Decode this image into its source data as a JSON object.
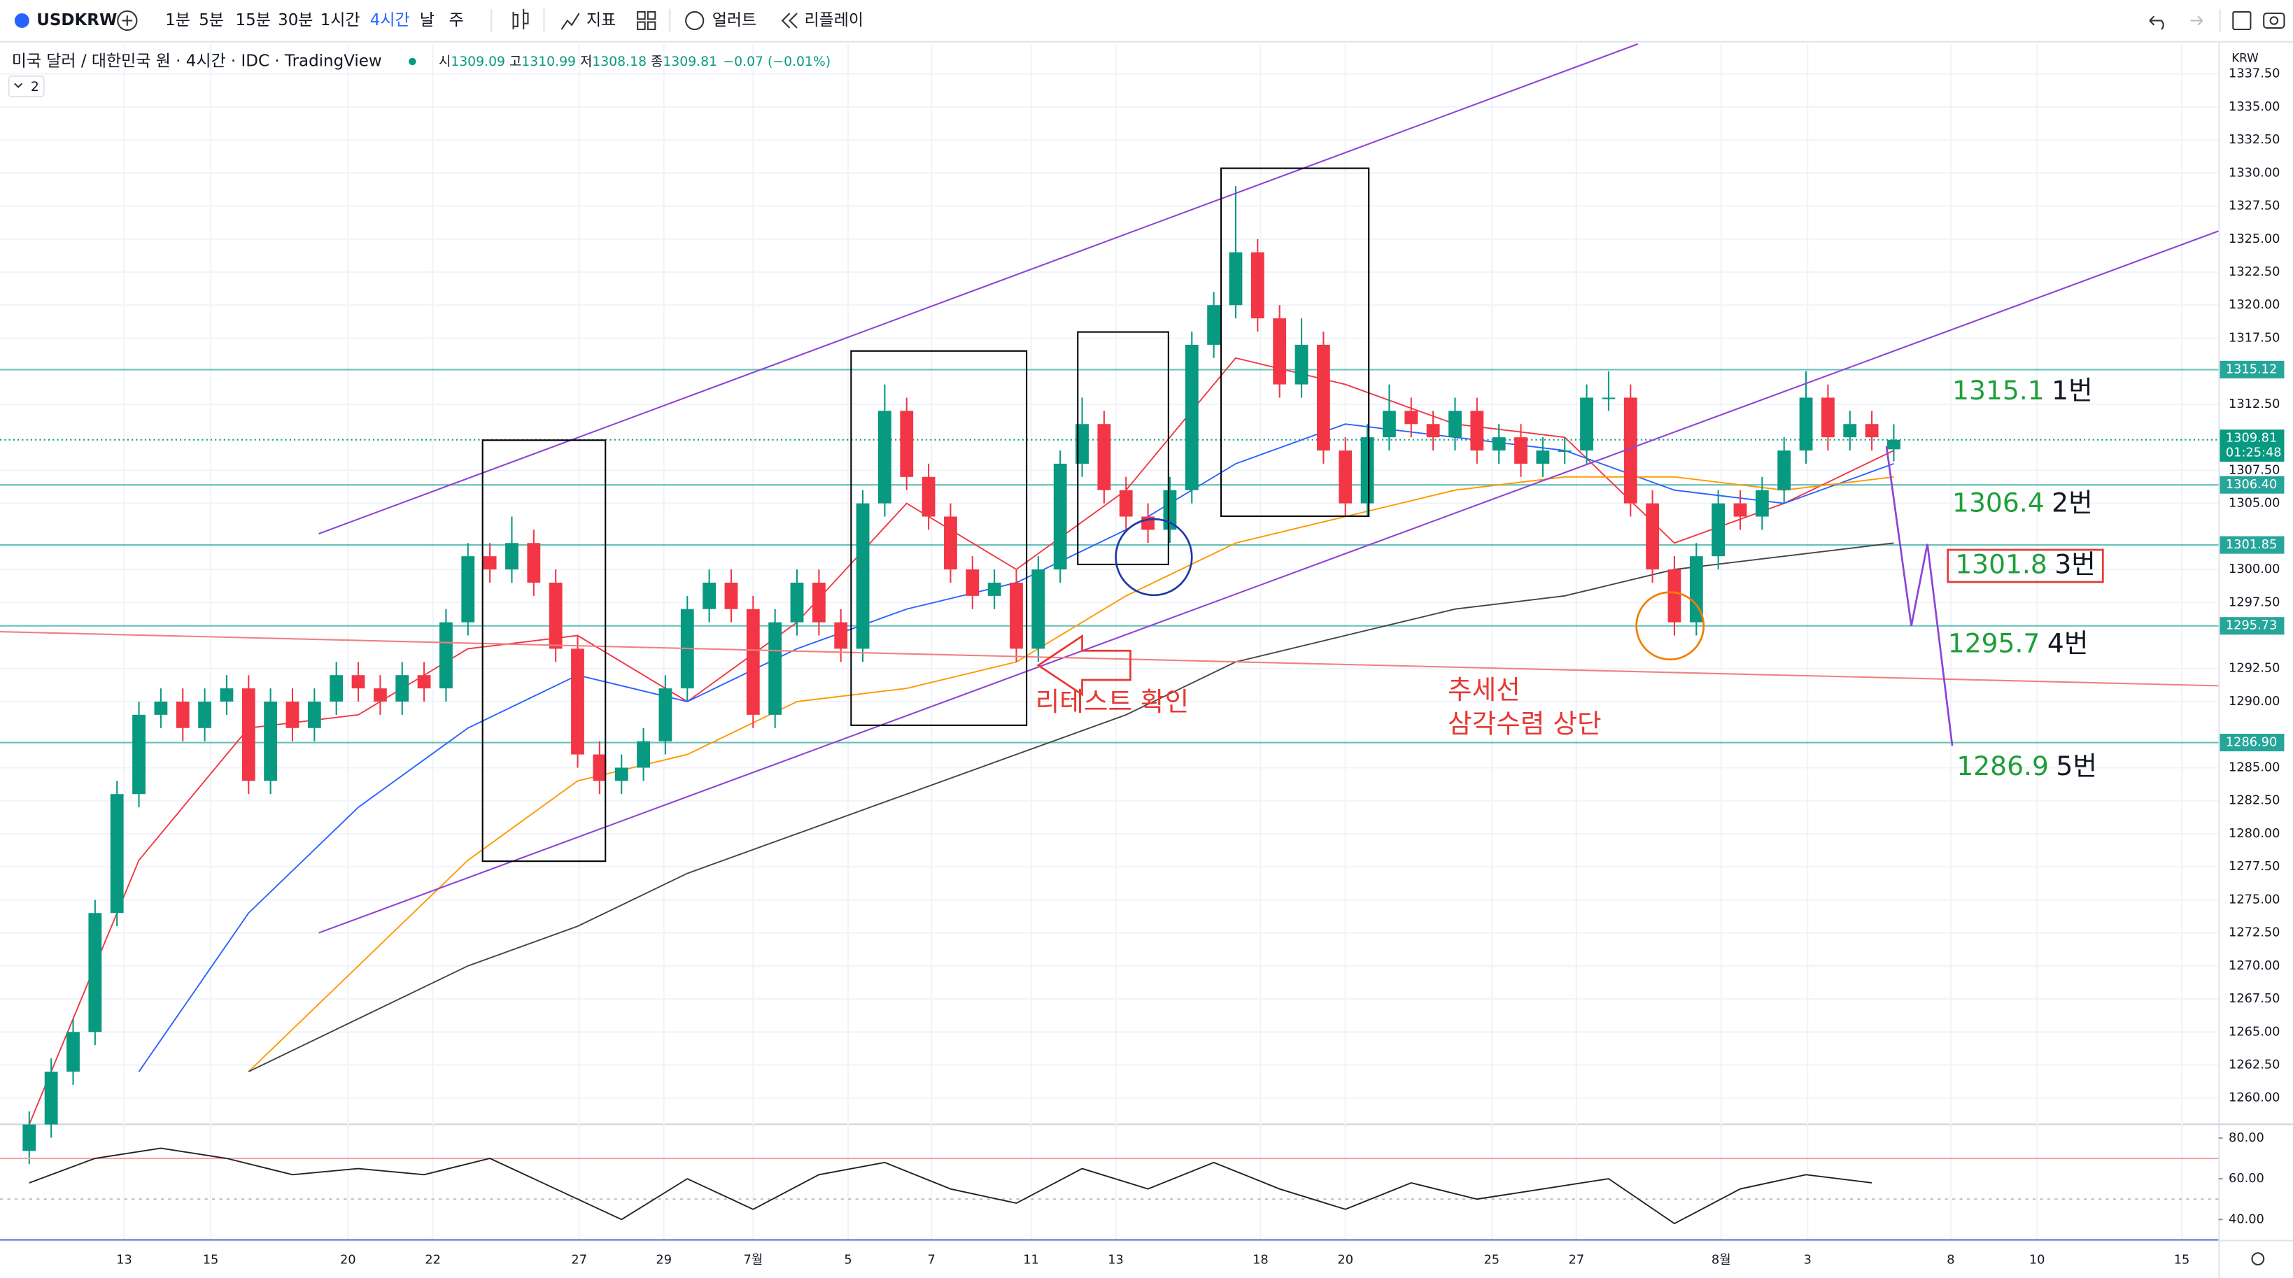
{
  "toolbar": {
    "symbol": "USDKRW",
    "intervals": [
      "1분",
      "5분",
      "15분",
      "30분",
      "1시간",
      "4시간",
      "날",
      "주"
    ],
    "indicators": "지표",
    "alerts": "얼러트",
    "replay": "리플레이"
  },
  "chart_data": {
    "type": "candlestick",
    "title": "미국 달러 / 대한민국 원 · 4시간 · IDC · TradingView",
    "ohlc_prefixes": [
      "시",
      "고",
      "저",
      "종"
    ],
    "change": "−0.07 (−0.01%)",
    "indicator_count": "2",
    "currency": "KRW",
    "countdown": "01:25:48",
    "up_color": "#089981",
    "down_color": "#f23645",
    "candles": [
      [
        1256,
        1259,
        1255,
        1258
      ],
      [
        1258,
        1263,
        1257,
        1262
      ],
      [
        1262,
        1266,
        1261,
        1265
      ],
      [
        1265,
        1275,
        1264,
        1274
      ],
      [
        1274,
        1284,
        1273,
        1283
      ],
      [
        1283,
        1290,
        1282,
        1289
      ],
      [
        1289,
        1291,
        1288,
        1290
      ],
      [
        1290,
        1291,
        1287,
        1288
      ],
      [
        1288,
        1291,
        1287,
        1290
      ],
      [
        1290,
        1292,
        1289,
        1291
      ],
      [
        1291,
        1292,
        1283,
        1284
      ],
      [
        1284,
        1291,
        1283,
        1290
      ],
      [
        1290,
        1291,
        1287,
        1288
      ],
      [
        1288,
        1291,
        1287,
        1290
      ],
      [
        1290,
        1293,
        1289,
        1292
      ],
      [
        1292,
        1293,
        1290,
        1291
      ],
      [
        1291,
        1292,
        1289,
        1290
      ],
      [
        1290,
        1293,
        1289,
        1292
      ],
      [
        1292,
        1293,
        1290,
        1291
      ],
      [
        1291,
        1297,
        1290,
        1296
      ],
      [
        1296,
        1302,
        1295,
        1301
      ],
      [
        1301,
        1302,
        1299,
        1300
      ],
      [
        1300,
        1304,
        1299,
        1302
      ],
      [
        1302,
        1303,
        1298,
        1299
      ],
      [
        1299,
        1300,
        1293,
        1294
      ],
      [
        1294,
        1295,
        1285,
        1286
      ],
      [
        1286,
        1287,
        1283,
        1284
      ],
      [
        1284,
        1286,
        1283,
        1285
      ],
      [
        1285,
        1288,
        1284,
        1287
      ],
      [
        1287,
        1292,
        1286,
        1291
      ],
      [
        1291,
        1298,
        1290,
        1297
      ],
      [
        1297,
        1300,
        1296,
        1299
      ],
      [
        1299,
        1300,
        1296,
        1297
      ],
      [
        1297,
        1298,
        1288,
        1289
      ],
      [
        1289,
        1297,
        1288,
        1296
      ],
      [
        1296,
        1300,
        1295,
        1299
      ],
      [
        1299,
        1300,
        1295,
        1296
      ],
      [
        1296,
        1297,
        1293,
        1294
      ],
      [
        1294,
        1306,
        1293,
        1305
      ],
      [
        1305,
        1314,
        1304,
        1312
      ],
      [
        1312,
        1313,
        1306,
        1307
      ],
      [
        1307,
        1308,
        1303,
        1304
      ],
      [
        1304,
        1305,
        1299,
        1300
      ],
      [
        1300,
        1301,
        1297,
        1298
      ],
      [
        1298,
        1300,
        1297,
        1299
      ],
      [
        1299,
        1300,
        1293,
        1294
      ],
      [
        1294,
        1301,
        1293,
        1300
      ],
      [
        1300,
        1309,
        1299,
        1308
      ],
      [
        1308,
        1313,
        1307,
        1311
      ],
      [
        1311,
        1312,
        1305,
        1306
      ],
      [
        1306,
        1307,
        1303,
        1304
      ],
      [
        1304,
        1305,
        1302,
        1303
      ],
      [
        1303,
        1307,
        1302,
        1306
      ],
      [
        1306,
        1318,
        1305,
        1317
      ],
      [
        1317,
        1321,
        1316,
        1320
      ],
      [
        1320,
        1329,
        1319,
        1324
      ],
      [
        1324,
        1325,
        1318,
        1319
      ],
      [
        1319,
        1320,
        1313,
        1314
      ],
      [
        1314,
        1319,
        1313,
        1317
      ],
      [
        1317,
        1318,
        1308,
        1309
      ],
      [
        1309,
        1310,
        1304,
        1305
      ],
      [
        1305,
        1311,
        1304,
        1310
      ],
      [
        1310,
        1314,
        1309,
        1312
      ],
      [
        1312,
        1313,
        1310,
        1311
      ],
      [
        1311,
        1312,
        1309,
        1310
      ],
      [
        1310,
        1313,
        1309,
        1312
      ],
      [
        1312,
        1313,
        1308,
        1309
      ],
      [
        1309,
        1311,
        1308,
        1310
      ],
      [
        1310,
        1311,
        1307,
        1308
      ],
      [
        1308,
        1310,
        1307,
        1309
      ],
      [
        1309,
        1310,
        1308,
        1309
      ],
      [
        1309,
        1314,
        1308,
        1313
      ],
      [
        1313,
        1315,
        1312,
        1313
      ],
      [
        1313,
        1314,
        1304,
        1305
      ],
      [
        1305,
        1306,
        1299,
        1300
      ],
      [
        1300,
        1301,
        1295,
        1296
      ],
      [
        1296,
        1302,
        1295,
        1301
      ],
      [
        1301,
        1306,
        1300,
        1305
      ],
      [
        1305,
        1306,
        1303,
        1304
      ],
      [
        1304,
        1307,
        1303,
        1306
      ],
      [
        1306,
        1310,
        1305,
        1309
      ],
      [
        1309,
        1315,
        1308,
        1313
      ],
      [
        1313,
        1314,
        1309,
        1310
      ],
      [
        1310,
        1312,
        1309,
        1311
      ],
      [
        1311,
        1312,
        1309,
        1310
      ],
      [
        1309.09,
        1310.99,
        1308.18,
        1309.81
      ]
    ],
    "series": [
      {
        "color": "#f23645",
        "x": [
          0,
          5,
          10,
          15,
          20,
          25,
          30,
          35,
          40,
          45,
          50,
          55,
          60,
          65,
          70,
          75,
          80,
          85
        ],
        "values": [
          1258,
          1278,
          1288,
          1289,
          1294,
          1295,
          1290,
          1296,
          1305,
          1300,
          1306,
          1316,
          1314,
          1311,
          1310,
          1302,
          1305,
          1309
        ]
      },
      {
        "color": "#2962ff",
        "x": [
          0,
          5,
          10,
          15,
          20,
          25,
          30,
          35,
          40,
          45,
          50,
          55,
          60,
          65,
          70,
          75,
          80,
          85
        ],
        "values": [
          null,
          1262,
          1274,
          1282,
          1288,
          1292,
          1290,
          1294,
          1297,
          1299,
          1303,
          1308,
          1311,
          1310,
          1309,
          1306,
          1305,
          1308
        ]
      },
      {
        "color": "#ff9800",
        "x": [
          0,
          5,
          10,
          15,
          20,
          25,
          30,
          35,
          40,
          45,
          50,
          55,
          60,
          65,
          70,
          75,
          80,
          85
        ],
        "values": [
          null,
          null,
          1262,
          1270,
          1278,
          1284,
          1286,
          1290,
          1291,
          1293,
          1298,
          1302,
          1304,
          1306,
          1307,
          1307,
          1306,
          1307
        ]
      },
      {
        "color": "#444444",
        "x": [
          10,
          15,
          20,
          25,
          30,
          35,
          40,
          45,
          50,
          55,
          60,
          65,
          70,
          75,
          80,
          85
        ],
        "values": [
          1262,
          1266,
          1270,
          1273,
          1277,
          1280,
          1283,
          1286,
          1289,
          1293,
          1295,
          1297,
          1298,
          1300,
          1301,
          1302
        ]
      }
    ],
    "levels": [
      1315.12,
      {
        "value": 1306.4,
        "label": "1306.40"
      },
      1301.85,
      1295.73,
      {
        "value": 1286.9,
        "label": "1286.90"
      }
    ],
    "level_color": "#26a69a",
    "xlim": [
      -1.3333,
      99.8
    ],
    "xticks": [
      {
        "value": 4.33,
        "label": "13"
      },
      {
        "value": 8.27,
        "label": "15"
      },
      {
        "value": 14.53,
        "label": "20"
      },
      {
        "value": 18.4,
        "label": "22"
      },
      {
        "value": 25.07,
        "label": "27"
      },
      {
        "value": 28.93,
        "label": "29"
      },
      {
        "value": 33,
        "label": "7월"
      },
      {
        "value": 37.33,
        "label": "5"
      },
      {
        "value": 41.13,
        "label": "7"
      },
      {
        "value": 45.67,
        "label": "11"
      },
      {
        "value": 49.53,
        "label": "13"
      },
      {
        "value": 56.13,
        "label": "18"
      },
      {
        "value": 60,
        "label": "20"
      },
      {
        "value": 66.67,
        "label": "25"
      },
      {
        "value": 70.53,
        "label": "27"
      },
      {
        "value": 77.13,
        "label": "8월"
      },
      {
        "value": 81.07,
        "label": "3"
      },
      {
        "value": 87.6,
        "label": "8"
      },
      {
        "value": 91.53,
        "label": "10"
      },
      {
        "value": 98.13,
        "label": "15"
      }
    ],
    "ylim": [
      1258.12,
      1339.76
    ],
    "yticks": [
      {
        "value": 1337.5,
        "label": "1337.50"
      },
      {
        "value": 1335,
        "label": "1335.00"
      },
      {
        "value": 1332.5,
        "label": "1332.50"
      },
      {
        "value": 1330,
        "label": "1330.00"
      },
      {
        "value": 1327.5,
        "label": "1327.50"
      },
      {
        "value": 1325,
        "label": "1325.00"
      },
      {
        "value": 1322.5,
        "label": "1322.50"
      },
      {
        "value": 1320,
        "label": "1320.00"
      },
      {
        "value": 1317.5,
        "label": "1317.50"
      },
      {
        "value": 1312.5,
        "label": "1312.50"
      },
      {
        "value": 1307.5,
        "label": "1307.50"
      },
      {
        "value": 1305,
        "label": "1305.00"
      },
      {
        "value": 1300,
        "label": "1300.00"
      },
      {
        "value": 1297.5,
        "label": "1297.50"
      },
      {
        "value": 1292.5,
        "label": "1292.50"
      },
      {
        "value": 1290,
        "label": "1290.00"
      },
      {
        "value": 1285,
        "label": "1285.00"
      },
      {
        "value": 1282.5,
        "label": "1282.50"
      },
      {
        "value": 1280,
        "label": "1280.00"
      },
      {
        "value": 1277.5,
        "label": "1277.50"
      },
      {
        "value": 1275,
        "label": "1275.00"
      },
      {
        "value": 1272.5,
        "label": "1272.50"
      },
      {
        "value": 1270,
        "label": "1270.00"
      },
      {
        "value": 1267.5,
        "label": "1267.50"
      },
      {
        "value": 1265,
        "label": "1265.00"
      },
      {
        "value": 1262.5,
        "label": "1262.50"
      },
      {
        "value": 1260,
        "label": "1260.00"
      }
    ],
    "annotations": {
      "levels": [
        {
          "price": "1315.1",
          "name": "1번"
        },
        {
          "price": "1306.4",
          "name": "2번"
        },
        {
          "price": "1301.8",
          "name": "3번"
        },
        {
          "price": "1295.7",
          "name": "4번"
        },
        {
          "price": "1286.9",
          "name": "5번"
        }
      ],
      "retest": "리테스트 확인",
      "trendline": [
        "추세선",
        "삼각수렴 상단"
      ]
    },
    "rsi": {
      "color": "#222222",
      "ylim": [
        30,
        86
      ],
      "yticks": [
        {
          "value": 80,
          "label": "80.00"
        },
        {
          "value": 60,
          "label": "60.00"
        },
        {
          "value": 40,
          "label": "40.00"
        }
      ],
      "levels": [
        70,
        50,
        30
      ],
      "level_colors": [
        "#f5a3a3",
        "#bbbbbb",
        "#5b7fd6"
      ],
      "x": [
        0,
        3,
        6,
        9,
        12,
        15,
        18,
        21,
        24,
        27,
        30,
        33,
        36,
        39,
        42,
        45,
        48,
        51,
        54,
        57,
        60,
        63,
        66,
        69,
        72,
        75,
        78,
        81,
        84
      ],
      "values": [
        58,
        70,
        75,
        70,
        62,
        65,
        62,
        70,
        55,
        40,
        60,
        45,
        62,
        68,
        55,
        48,
        65,
        55,
        68,
        55,
        45,
        58,
        50,
        55,
        60,
        38,
        55,
        62,
        58
      ]
    }
  }
}
